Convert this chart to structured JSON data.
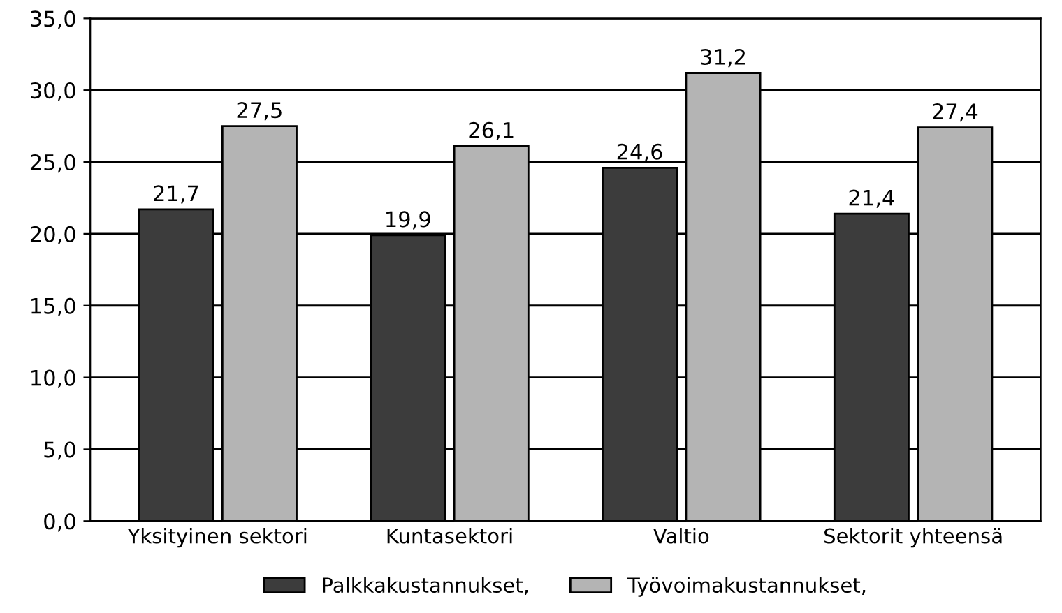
{
  "chart_data": {
    "type": "bar",
    "categories": [
      "Yksityinen sektori",
      "Kuntasektori",
      "Valtio",
      "Sektorit yhteensä"
    ],
    "series": [
      {
        "name": "Palkkakustannukset,",
        "color": "#3c3c3c",
        "values": [
          21.7,
          19.9,
          24.6,
          21.4
        ],
        "value_labels": [
          "21,7",
          "19,9",
          "24,6",
          "21,4"
        ]
      },
      {
        "name": "Työvoimakustannukset,",
        "color": "#b4b4b4",
        "values": [
          27.5,
          26.1,
          31.2,
          27.4
        ],
        "value_labels": [
          "27,5",
          "26,1",
          "31,2",
          "27,4"
        ]
      }
    ],
    "ylim": [
      0,
      35
    ],
    "yticks": [
      {
        "value": 0,
        "label": "0,0"
      },
      {
        "value": 5,
        "label": "5,0"
      },
      {
        "value": 10,
        "label": "10,0"
      },
      {
        "value": 15,
        "label": "15,0"
      },
      {
        "value": 20,
        "label": "20,0"
      },
      {
        "value": 25,
        "label": "25,0"
      },
      {
        "value": 30,
        "label": "30,0"
      },
      {
        "value": 35,
        "label": "35,0"
      }
    ],
    "grid": "y",
    "legend": "bottom"
  }
}
